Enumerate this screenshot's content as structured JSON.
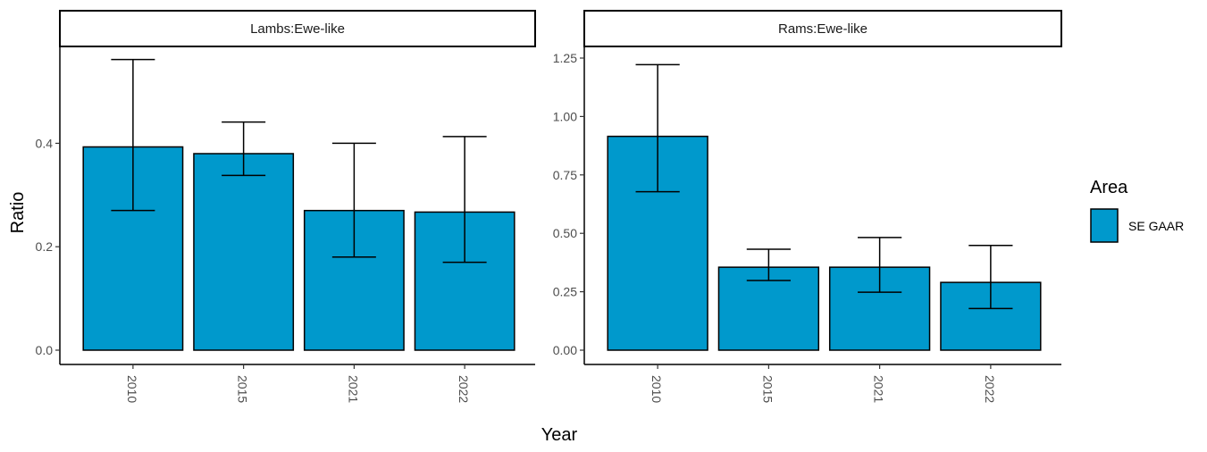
{
  "chart_data": {
    "type": "bar",
    "xlabel": "Year",
    "ylabel": "Ratio",
    "categories": [
      "2010",
      "2015",
      "2021",
      "2022"
    ],
    "fill_color": "#0099cc",
    "legend": {
      "title": "Area",
      "entries": [
        {
          "name": "SE GAAR",
          "color": "#0099cc"
        }
      ],
      "position": "right"
    },
    "grid": false,
    "facets": [
      {
        "label": "Lambs:Ewe-like",
        "values": [
          0.393,
          0.38,
          0.27,
          0.267
        ],
        "error_low": [
          0.27,
          0.338,
          0.18,
          0.17
        ],
        "error_high": [
          0.562,
          0.441,
          0.4,
          0.413
        ],
        "ylim": [
          0,
          0.57
        ],
        "yticks": [
          "0.0",
          "0.2",
          "0.4"
        ],
        "ytick_values": [
          0,
          0.2,
          0.4
        ]
      },
      {
        "label": "Rams:Ewe-like",
        "values": [
          0.915,
          0.355,
          0.355,
          0.29
        ],
        "error_low": [
          0.678,
          0.298,
          0.248,
          0.178
        ],
        "error_high": [
          1.222,
          0.432,
          0.482,
          0.448
        ],
        "ylim": [
          0,
          1.25
        ],
        "yticks": [
          "0.00",
          "0.25",
          "0.50",
          "0.75",
          "1.00",
          "1.25"
        ],
        "ytick_values": [
          0,
          0.25,
          0.5,
          0.75,
          1.0,
          1.25
        ]
      }
    ]
  }
}
